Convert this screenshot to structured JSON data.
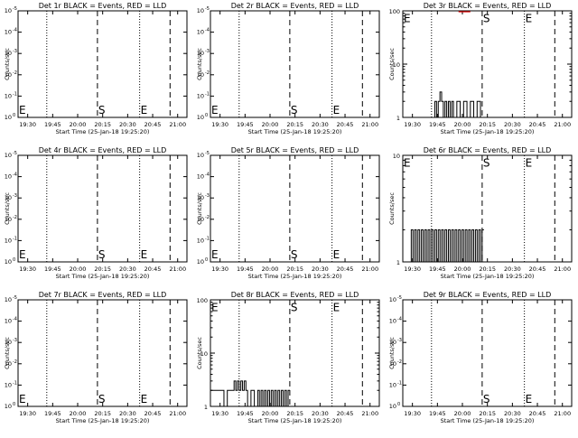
{
  "chart_data": [
    {
      "title": "Det 1r BLACK = Events, RED = LLD",
      "ylabel": "Counts/sec",
      "xlabel": "Start Time (25-Jan-18 19:25:20)",
      "xticks": [
        "19:30",
        "19:45",
        "20:00",
        "20:15",
        "20:30",
        "20:45",
        "21:00"
      ],
      "yscale": "log",
      "ylim": [
        1,
        1e-05
      ],
      "ytick_exp": [
        "0",
        "-1",
        "-2",
        "-3",
        "-4",
        "-5"
      ],
      "ytick_mant": "10",
      "xlim": [
        0,
        100
      ],
      "tick_frac": [
        0.057,
        0.205,
        0.353,
        0.501,
        0.649,
        0.797,
        0.945
      ],
      "dotted": [
        0.17,
        0.72
      ],
      "dashed": [
        0.47,
        0.9
      ],
      "markers": [
        {
          "label": "E",
          "at": 0.0
        },
        {
          "label": "S",
          "at": 0.47
        },
        {
          "label": "E",
          "at": 0.72
        }
      ],
      "marker_y": 0.88,
      "events": [],
      "lld": []
    },
    {
      "title": "Det 2r BLACK = Events, RED = LLD",
      "ylabel": "Counts/sec",
      "xlabel": "Start Time (25-Jan-18 19:25:20)",
      "xticks": [
        "19:30",
        "19:45",
        "20:00",
        "20:15",
        "20:30",
        "20:45",
        "21:00"
      ],
      "yscale": "log",
      "ylim": [
        1,
        1e-05
      ],
      "ytick_exp": [
        "0",
        "-1",
        "-2",
        "-3",
        "-4",
        "-5"
      ],
      "ytick_mant": "10",
      "xlim": [
        0,
        100
      ],
      "tick_frac": [
        0.057,
        0.205,
        0.353,
        0.501,
        0.649,
        0.797,
        0.945
      ],
      "dotted": [
        0.17,
        0.72
      ],
      "dashed": [
        0.47,
        0.9
      ],
      "markers": [
        {
          "label": "E",
          "at": 0.0
        },
        {
          "label": "S",
          "at": 0.47
        },
        {
          "label": "E",
          "at": 0.72
        }
      ],
      "marker_y": 0.88,
      "events": [],
      "lld": []
    },
    {
      "title": "Det 3r BLACK = Events, RED = LLD",
      "ylabel": "Counts/sec",
      "xlabel": "Start Time (25-Jan-18 19:25:20)",
      "xticks": [
        "19:30",
        "19:45",
        "20:00",
        "20:15",
        "20:30",
        "20:45",
        "21:00"
      ],
      "yscale": "log",
      "ylim": [
        1,
        100
      ],
      "ytick_labels": [
        "1",
        "10",
        "100"
      ],
      "ytick_vals": [
        1,
        10,
        100
      ],
      "xlim": [
        0,
        100
      ],
      "tick_frac": [
        0.057,
        0.205,
        0.353,
        0.501,
        0.649,
        0.797,
        0.945
      ],
      "dotted": [
        0.17,
        0.72
      ],
      "dashed": [
        0.47,
        0.9
      ],
      "markers": [
        {
          "label": "E",
          "at": 0.0
        },
        {
          "label": "S",
          "at": 0.47
        },
        {
          "label": "E",
          "at": 0.72
        }
      ],
      "marker_y": 0.02,
      "events": [
        [
          0.18,
          1
        ],
        [
          0.19,
          2
        ],
        [
          0.2,
          1
        ],
        [
          0.21,
          2
        ],
        [
          0.22,
          3
        ],
        [
          0.23,
          2
        ],
        [
          0.24,
          1
        ],
        [
          0.25,
          2
        ],
        [
          0.26,
          1
        ],
        [
          0.27,
          2
        ],
        [
          0.28,
          1
        ],
        [
          0.29,
          2
        ],
        [
          0.3,
          1
        ],
        [
          0.32,
          2
        ],
        [
          0.34,
          1
        ],
        [
          0.36,
          2
        ],
        [
          0.38,
          1
        ],
        [
          0.4,
          2
        ],
        [
          0.42,
          1
        ],
        [
          0.44,
          2
        ],
        [
          0.46,
          1
        ]
      ],
      "lld": [
        [
          0.33,
          100
        ],
        [
          0.4,
          100
        ]
      ]
    },
    {
      "title": "Det 4r BLACK = Events, RED = LLD",
      "ylabel": "Counts/sec",
      "xlabel": "Start Time (25-Jan-18 19:25:20)",
      "xticks": [
        "19:30",
        "19:45",
        "20:00",
        "20:15",
        "20:30",
        "20:45",
        "21:00"
      ],
      "yscale": "log",
      "ylim": [
        1,
        1e-05
      ],
      "ytick_exp": [
        "0",
        "-1",
        "-2",
        "-3",
        "-4",
        "-5"
      ],
      "ytick_mant": "10",
      "xlim": [
        0,
        100
      ],
      "tick_frac": [
        0.057,
        0.205,
        0.353,
        0.501,
        0.649,
        0.797,
        0.945
      ],
      "dotted": [
        0.17,
        0.72
      ],
      "dashed": [
        0.47,
        0.9
      ],
      "markers": [
        {
          "label": "E",
          "at": 0.0
        },
        {
          "label": "S",
          "at": 0.47
        },
        {
          "label": "E",
          "at": 0.72
        }
      ],
      "marker_y": 0.88,
      "events": [],
      "lld": []
    },
    {
      "title": "Det 5r BLACK = Events, RED = LLD",
      "ylabel": "Counts/sec",
      "xlabel": "Start Time (25-Jan-18 19:25:20)",
      "xticks": [
        "19:30",
        "19:45",
        "20:00",
        "20:15",
        "20:30",
        "20:45",
        "21:00"
      ],
      "yscale": "log",
      "ylim": [
        1,
        1e-05
      ],
      "ytick_exp": [
        "0",
        "-1",
        "-2",
        "-3",
        "-4",
        "-5"
      ],
      "ytick_mant": "10",
      "xlim": [
        0,
        100
      ],
      "tick_frac": [
        0.057,
        0.205,
        0.353,
        0.501,
        0.649,
        0.797,
        0.945
      ],
      "dotted": [
        0.17,
        0.72
      ],
      "dashed": [
        0.47,
        0.9
      ],
      "markers": [
        {
          "label": "E",
          "at": 0.0
        },
        {
          "label": "S",
          "at": 0.47
        },
        {
          "label": "E",
          "at": 0.72
        }
      ],
      "marker_y": 0.88,
      "events": [],
      "lld": []
    },
    {
      "title": "Det 6r BLACK = Events, RED = LLD",
      "ylabel": "Counts/sec",
      "xlabel": "Start Time (25-Jan-18 19:25:20)",
      "xticks": [
        "19:30",
        "19:45",
        "20:00",
        "20:15",
        "20:30",
        "20:45",
        "21:00"
      ],
      "yscale": "log",
      "ylim": [
        1,
        10
      ],
      "ytick_labels": [
        "1",
        "10"
      ],
      "ytick_vals": [
        1,
        10
      ],
      "xlim": [
        0,
        100
      ],
      "tick_frac": [
        0.057,
        0.205,
        0.353,
        0.501,
        0.649,
        0.797,
        0.945
      ],
      "dotted": [
        0.17,
        0.72
      ],
      "dashed": [
        0.47,
        0.9
      ],
      "markers": [
        {
          "label": "E",
          "at": 0.0
        },
        {
          "label": "S",
          "at": 0.47
        },
        {
          "label": "E",
          "at": 0.72
        }
      ],
      "marker_y": 0.02,
      "events": [
        [
          0.04,
          1
        ],
        [
          0.05,
          2
        ],
        [
          0.06,
          1
        ],
        [
          0.07,
          2
        ],
        [
          0.08,
          1
        ],
        [
          0.09,
          2
        ],
        [
          0.1,
          1
        ],
        [
          0.11,
          2
        ],
        [
          0.12,
          1
        ],
        [
          0.13,
          2
        ],
        [
          0.14,
          1
        ],
        [
          0.15,
          2
        ],
        [
          0.16,
          1
        ],
        [
          0.17,
          2
        ],
        [
          0.18,
          1
        ],
        [
          0.19,
          2
        ],
        [
          0.2,
          1
        ],
        [
          0.21,
          2
        ],
        [
          0.22,
          1
        ],
        [
          0.23,
          2
        ],
        [
          0.24,
          1
        ],
        [
          0.25,
          2
        ],
        [
          0.26,
          1
        ],
        [
          0.27,
          2
        ],
        [
          0.28,
          1
        ],
        [
          0.29,
          2
        ],
        [
          0.3,
          1
        ],
        [
          0.31,
          2
        ],
        [
          0.32,
          1
        ],
        [
          0.33,
          2
        ],
        [
          0.34,
          1
        ],
        [
          0.35,
          2
        ],
        [
          0.36,
          1
        ],
        [
          0.37,
          2
        ],
        [
          0.38,
          1
        ],
        [
          0.39,
          2
        ],
        [
          0.4,
          1
        ],
        [
          0.41,
          2
        ],
        [
          0.42,
          1
        ],
        [
          0.43,
          2
        ],
        [
          0.44,
          1
        ],
        [
          0.45,
          2
        ],
        [
          0.46,
          1
        ],
        [
          0.47,
          2
        ]
      ],
      "lld": []
    },
    {
      "title": "Det 7r BLACK = Events, RED = LLD",
      "ylabel": "Counts/sec",
      "xlabel": "Start Time (25-Jan-18 19:25:20)",
      "xticks": [
        "19:30",
        "19:45",
        "20:00",
        "20:15",
        "20:30",
        "20:45",
        "21:00"
      ],
      "yscale": "log",
      "ylim": [
        1,
        1e-05
      ],
      "ytick_exp": [
        "0",
        "-1",
        "-2",
        "-3",
        "-4",
        "-5"
      ],
      "ytick_mant": "10",
      "xlim": [
        0,
        100
      ],
      "tick_frac": [
        0.057,
        0.205,
        0.353,
        0.501,
        0.649,
        0.797,
        0.945
      ],
      "dotted": [
        0.17,
        0.72
      ],
      "dashed": [
        0.47,
        0.9
      ],
      "markers": [
        {
          "label": "E",
          "at": 0.0
        },
        {
          "label": "S",
          "at": 0.47
        },
        {
          "label": "E",
          "at": 0.72
        }
      ],
      "marker_y": 0.88,
      "events": [],
      "lld": []
    },
    {
      "title": "Det 8r BLACK = Events, RED = LLD",
      "ylabel": "Counts/sec",
      "xlabel": "Start Time (25-Jan-18 19:25:20)",
      "xticks": [
        "19:30",
        "19:45",
        "20:00",
        "20:15",
        "20:30",
        "20:45",
        "21:00"
      ],
      "yscale": "log",
      "ylim": [
        1,
        100
      ],
      "ytick_labels": [
        "1",
        "10",
        "100"
      ],
      "ytick_vals": [
        1,
        10,
        100
      ],
      "xlim": [
        0,
        100
      ],
      "tick_frac": [
        0.057,
        0.205,
        0.353,
        0.501,
        0.649,
        0.797,
        0.945
      ],
      "dotted": [
        0.17,
        0.72
      ],
      "dashed": [
        0.47,
        0.9
      ],
      "markers": [
        {
          "label": "E",
          "at": 0.0
        },
        {
          "label": "S",
          "at": 0.47
        },
        {
          "label": "E",
          "at": 0.72
        }
      ],
      "marker_y": 0.02,
      "events": [
        [
          0.0,
          2
        ],
        [
          0.02,
          2
        ],
        [
          0.04,
          2
        ],
        [
          0.06,
          2
        ],
        [
          0.08,
          1
        ],
        [
          0.1,
          2
        ],
        [
          0.12,
          2
        ],
        [
          0.14,
          3
        ],
        [
          0.15,
          2
        ],
        [
          0.16,
          3
        ],
        [
          0.17,
          2
        ],
        [
          0.18,
          3
        ],
        [
          0.19,
          2
        ],
        [
          0.2,
          3
        ],
        [
          0.21,
          2
        ],
        [
          0.22,
          1
        ],
        [
          0.24,
          2
        ],
        [
          0.26,
          1
        ],
        [
          0.28,
          2
        ],
        [
          0.29,
          1
        ],
        [
          0.3,
          2
        ],
        [
          0.31,
          1
        ],
        [
          0.32,
          2
        ],
        [
          0.33,
          1
        ],
        [
          0.34,
          2
        ],
        [
          0.35,
          1
        ],
        [
          0.36,
          2
        ],
        [
          0.37,
          1
        ],
        [
          0.38,
          2
        ],
        [
          0.39,
          1
        ],
        [
          0.4,
          2
        ],
        [
          0.41,
          1
        ],
        [
          0.42,
          2
        ],
        [
          0.43,
          1
        ],
        [
          0.44,
          2
        ],
        [
          0.45,
          1
        ],
        [
          0.46,
          2
        ]
      ],
      "lld": []
    },
    {
      "title": "Det 9r BLACK = Events, RED = LLD",
      "ylabel": "Counts/sec",
      "xlabel": "Start Time (25-Jan-18 19:25:20)",
      "xticks": [
        "19:30",
        "19:45",
        "20:00",
        "20:15",
        "20:30",
        "20:45",
        "21:00"
      ],
      "yscale": "log",
      "ylim": [
        1,
        1e-05
      ],
      "ytick_exp": [
        "0",
        "-1",
        "-2",
        "-3",
        "-4",
        "-5"
      ],
      "ytick_mant": "10",
      "xlim": [
        0,
        100
      ],
      "tick_frac": [
        0.057,
        0.205,
        0.353,
        0.501,
        0.649,
        0.797,
        0.945
      ],
      "dotted": [
        0.17,
        0.72
      ],
      "dashed": [
        0.47,
        0.9
      ],
      "markers": [
        {
          "label": "S",
          "at": 0.47
        },
        {
          "label": "E",
          "at": 0.72
        }
      ],
      "marker_y": 0.88,
      "events": [],
      "lld": []
    }
  ]
}
